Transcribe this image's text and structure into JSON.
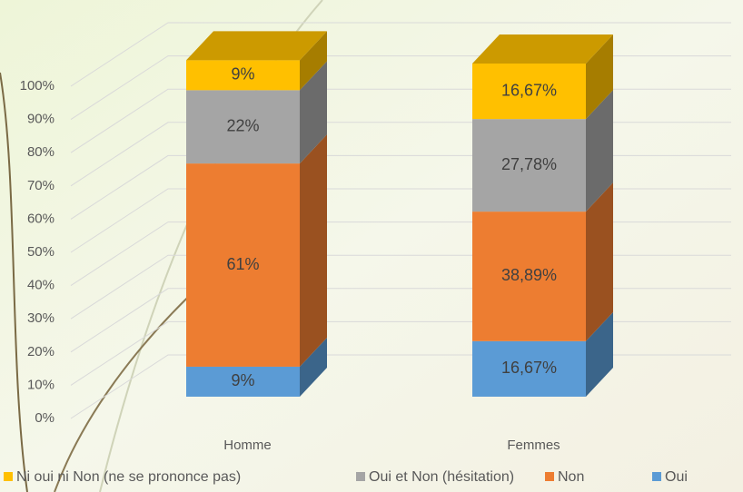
{
  "chart_data": {
    "type": "bar3d_stacked",
    "categories": [
      "Homme",
      "Femmes"
    ],
    "series": [
      {
        "name": "Oui",
        "color": "#5b9bd5",
        "values": [
          9,
          16.67
        ],
        "value_labels": [
          "9%",
          "16,67%"
        ]
      },
      {
        "name": "Non",
        "color": "#ed7d31",
        "values": [
          61,
          38.89
        ],
        "value_labels": [
          "61%",
          "38,89%"
        ]
      },
      {
        "name": "Oui et Non (hésitation)",
        "color": "#a5a5a5",
        "values": [
          22,
          27.78
        ],
        "value_labels": [
          "22%",
          "27,78%"
        ]
      },
      {
        "name": "Ni oui ni Non (ne se prononce pas)",
        "color": "#ffc000",
        "values": [
          9,
          16.67
        ],
        "value_labels": [
          "9%",
          "16,67%"
        ]
      }
    ],
    "ylim": [
      0,
      100
    ],
    "yticks": [
      {
        "value": 0,
        "label": "0%"
      },
      {
        "value": 10,
        "label": "10%"
      },
      {
        "value": 20,
        "label": "20%"
      },
      {
        "value": 30,
        "label": "30%"
      },
      {
        "value": 40,
        "label": "40%"
      },
      {
        "value": 50,
        "label": "50%"
      },
      {
        "value": 60,
        "label": "60%"
      },
      {
        "value": 70,
        "label": "70%"
      },
      {
        "value": 80,
        "label": "80%"
      },
      {
        "value": 90,
        "label": "90%"
      },
      {
        "value": 100,
        "label": "100%"
      }
    ],
    "grid": true,
    "legend": "bottom"
  }
}
